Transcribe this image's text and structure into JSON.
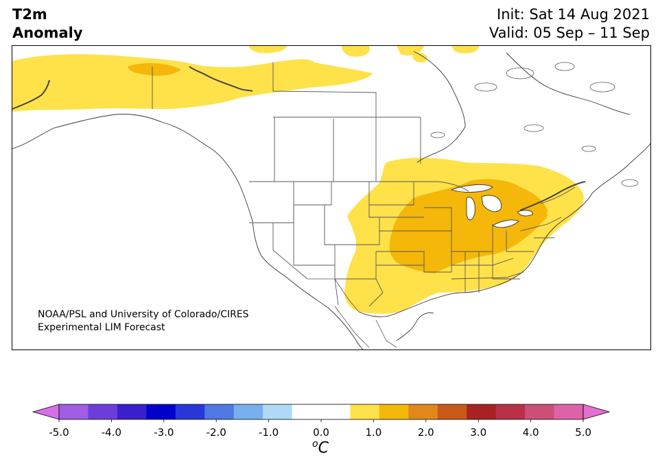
{
  "header": {
    "title_line1": "T2m",
    "title_line2": "Anomaly",
    "init": "Init: Sat 14 Aug 2021",
    "valid": "Valid: 05 Sep – 11 Sep"
  },
  "credit": {
    "line1": "NOAA/PSL and University of Colorado/CIRES",
    "line2": "Experimental LIM Forecast"
  },
  "colorbar": {
    "colors": [
      "#d670e6",
      "#a15de3",
      "#6c3ed9",
      "#3a20cc",
      "#0000cd",
      "#2838d8",
      "#4f78e3",
      "#78b0ee",
      "#aedaf7",
      "#ffffff",
      "#ffffff",
      "#ffe14a",
      "#f4b70a",
      "#e0891a",
      "#c85a18",
      "#a82222",
      "#b83148",
      "#cc4f78",
      "#dd63a8",
      "#e46fcf"
    ],
    "ticks": [
      "-5.0",
      "-4.0",
      "-3.0",
      "-2.0",
      "-1.0",
      "0.0",
      "1.0",
      "2.0",
      "3.0",
      "4.0",
      "5.0"
    ],
    "unit": "C",
    "unit_prefix": "o"
  },
  "legend_levels": {
    "weak_warm_color": "#ffe14a",
    "moderate_warm_color": "#f4b70a"
  }
}
